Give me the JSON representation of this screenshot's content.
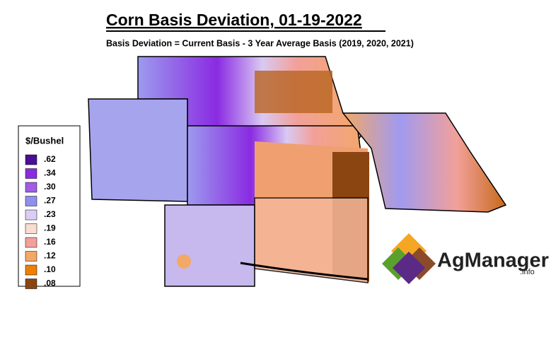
{
  "title": "Corn Basis Deviation, 01-19-2022",
  "subtitle": "Basis Deviation = Current Basis - 3 Year Average Basis (2019, 2020, 2021)",
  "legend": {
    "title": "$/Bushel",
    "items": [
      {
        "label": ".62",
        "color": "#4b0e96"
      },
      {
        "label": ".34",
        "color": "#8a2be2"
      },
      {
        "label": ".30",
        "color": "#a35ce6"
      },
      {
        "label": ".27",
        "color": "#8f8fee"
      },
      {
        "label": ".23",
        "color": "#dccdf5"
      },
      {
        "label": ".19",
        "color": "#f8ddd0"
      },
      {
        "label": ".16",
        "color": "#f2a099"
      },
      {
        "label": ".12",
        "color": "#f3a866"
      },
      {
        "label": ".10",
        "color": "#f07f00"
      },
      {
        "label": ".08",
        "color": "#8b4511"
      }
    ]
  },
  "logo": {
    "name": "AgManager",
    "suffix": ".info"
  }
}
